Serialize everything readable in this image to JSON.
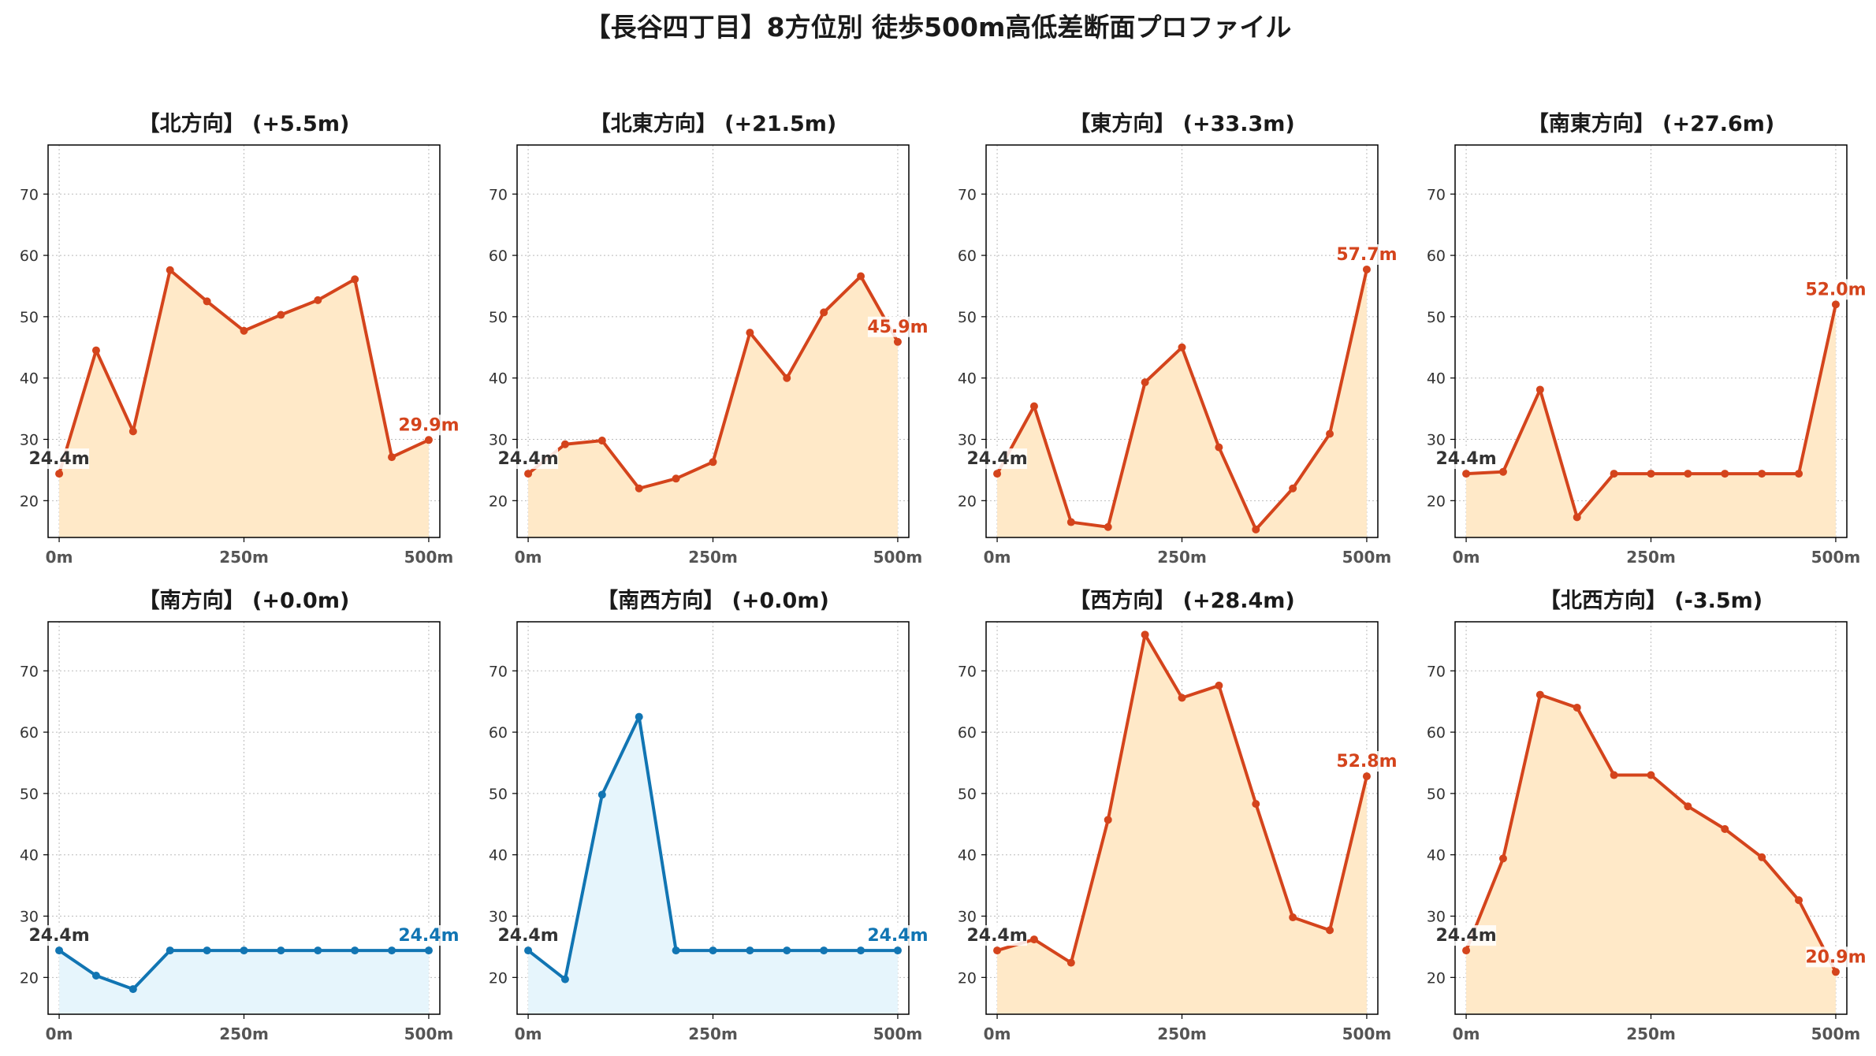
{
  "suptitle": "【長谷四丁目】8方位別 徒歩500m高低差断面プロファイル",
  "colors": {
    "up_line": "#D4441C",
    "up_fill": "#FFE9C8",
    "down_line": "#1175B3",
    "down_fill": "#E6F5FC",
    "start_label": "#333333",
    "grid": "#BBBBBB"
  },
  "chart_data": [
    {
      "type": "area",
      "title": "【北方向】 (+5.5m)",
      "x": [
        0,
        50,
        100,
        150,
        200,
        250,
        300,
        350,
        400,
        450,
        500
      ],
      "y": [
        24.4,
        44.5,
        31.3,
        57.6,
        52.5,
        47.7,
        50.3,
        52.7,
        56.1,
        27.1,
        29.9
      ],
      "xticks": [
        "0m",
        "250m",
        "500m"
      ],
      "yticks": [
        20,
        30,
        40,
        50,
        60,
        70
      ],
      "ylim": [
        14,
        78
      ],
      "xlim": [
        -15,
        515
      ],
      "start_label": "24.4m",
      "end_label": "29.9m",
      "trend": "up",
      "grid": true
    },
    {
      "type": "area",
      "title": "【北東方向】 (+21.5m)",
      "x": [
        0,
        50,
        100,
        150,
        200,
        250,
        300,
        350,
        400,
        450,
        500
      ],
      "y": [
        24.4,
        29.2,
        29.8,
        22.0,
        23.6,
        26.3,
        47.4,
        40.0,
        50.7,
        56.6,
        45.9
      ],
      "xticks": [
        "0m",
        "250m",
        "500m"
      ],
      "yticks": [
        20,
        30,
        40,
        50,
        60,
        70
      ],
      "ylim": [
        14,
        78
      ],
      "xlim": [
        -15,
        515
      ],
      "start_label": "24.4m",
      "end_label": "45.9m",
      "trend": "up",
      "grid": true
    },
    {
      "type": "area",
      "title": "【東方向】 (+33.3m)",
      "x": [
        0,
        50,
        100,
        150,
        200,
        250,
        300,
        350,
        400,
        450,
        500
      ],
      "y": [
        24.4,
        35.4,
        16.5,
        15.7,
        39.3,
        45.0,
        28.7,
        15.3,
        22.0,
        30.9,
        57.7
      ],
      "xticks": [
        "0m",
        "250m",
        "500m"
      ],
      "yticks": [
        20,
        30,
        40,
        50,
        60,
        70
      ],
      "ylim": [
        14,
        78
      ],
      "xlim": [
        -15,
        515
      ],
      "start_label": "24.4m",
      "end_label": "57.7m",
      "trend": "up",
      "grid": true
    },
    {
      "type": "area",
      "title": "【南東方向】 (+27.6m)",
      "x": [
        0,
        50,
        100,
        150,
        200,
        250,
        300,
        350,
        400,
        450,
        500
      ],
      "y": [
        24.4,
        24.7,
        38.1,
        17.3,
        24.4,
        24.4,
        24.4,
        24.4,
        24.4,
        24.4,
        52.0
      ],
      "xticks": [
        "0m",
        "250m",
        "500m"
      ],
      "yticks": [
        20,
        30,
        40,
        50,
        60,
        70
      ],
      "ylim": [
        14,
        78
      ],
      "xlim": [
        -15,
        515
      ],
      "start_label": "24.4m",
      "end_label": "52.0m",
      "trend": "up",
      "grid": true
    },
    {
      "type": "area",
      "title": "【南方向】 (+0.0m)",
      "x": [
        0,
        50,
        100,
        150,
        200,
        250,
        300,
        350,
        400,
        450,
        500
      ],
      "y": [
        24.4,
        20.3,
        18.1,
        24.4,
        24.4,
        24.4,
        24.4,
        24.4,
        24.4,
        24.4,
        24.4
      ],
      "xticks": [
        "0m",
        "250m",
        "500m"
      ],
      "yticks": [
        20,
        30,
        40,
        50,
        60,
        70
      ],
      "ylim": [
        14,
        78
      ],
      "xlim": [
        -15,
        515
      ],
      "start_label": "24.4m",
      "end_label": "24.4m",
      "trend": "down",
      "grid": true
    },
    {
      "type": "area",
      "title": "【南西方向】 (+0.0m)",
      "x": [
        0,
        50,
        100,
        150,
        200,
        250,
        300,
        350,
        400,
        450,
        500
      ],
      "y": [
        24.4,
        19.7,
        49.8,
        62.5,
        24.4,
        24.4,
        24.4,
        24.4,
        24.4,
        24.4,
        24.4
      ],
      "xticks": [
        "0m",
        "250m",
        "500m"
      ],
      "yticks": [
        20,
        30,
        40,
        50,
        60,
        70
      ],
      "ylim": [
        14,
        78
      ],
      "xlim": [
        -15,
        515
      ],
      "start_label": "24.4m",
      "end_label": "24.4m",
      "trend": "down",
      "grid": true
    },
    {
      "type": "area",
      "title": "【西方向】 (+28.4m)",
      "x": [
        0,
        50,
        100,
        150,
        200,
        250,
        300,
        350,
        400,
        450,
        500
      ],
      "y": [
        24.4,
        26.2,
        22.4,
        45.7,
        75.9,
        65.6,
        67.6,
        48.3,
        29.8,
        27.7,
        52.8
      ],
      "xticks": [
        "0m",
        "250m",
        "500m"
      ],
      "yticks": [
        20,
        30,
        40,
        50,
        60,
        70
      ],
      "ylim": [
        14,
        78
      ],
      "xlim": [
        -15,
        515
      ],
      "start_label": "24.4m",
      "end_label": "52.8m",
      "trend": "up",
      "grid": true
    },
    {
      "type": "area",
      "title": "【北西方向】 (-3.5m)",
      "x": [
        0,
        50,
        100,
        150,
        200,
        250,
        300,
        350,
        400,
        450,
        500
      ],
      "y": [
        24.4,
        39.4,
        66.1,
        64.0,
        53.0,
        53.0,
        47.9,
        44.2,
        39.6,
        32.6,
        20.9
      ],
      "xticks": [
        "0m",
        "250m",
        "500m"
      ],
      "yticks": [
        20,
        30,
        40,
        50,
        60,
        70
      ],
      "ylim": [
        14,
        78
      ],
      "xlim": [
        -15,
        515
      ],
      "start_label": "24.4m",
      "end_label": "20.9m",
      "trend": "up",
      "grid": true
    }
  ]
}
